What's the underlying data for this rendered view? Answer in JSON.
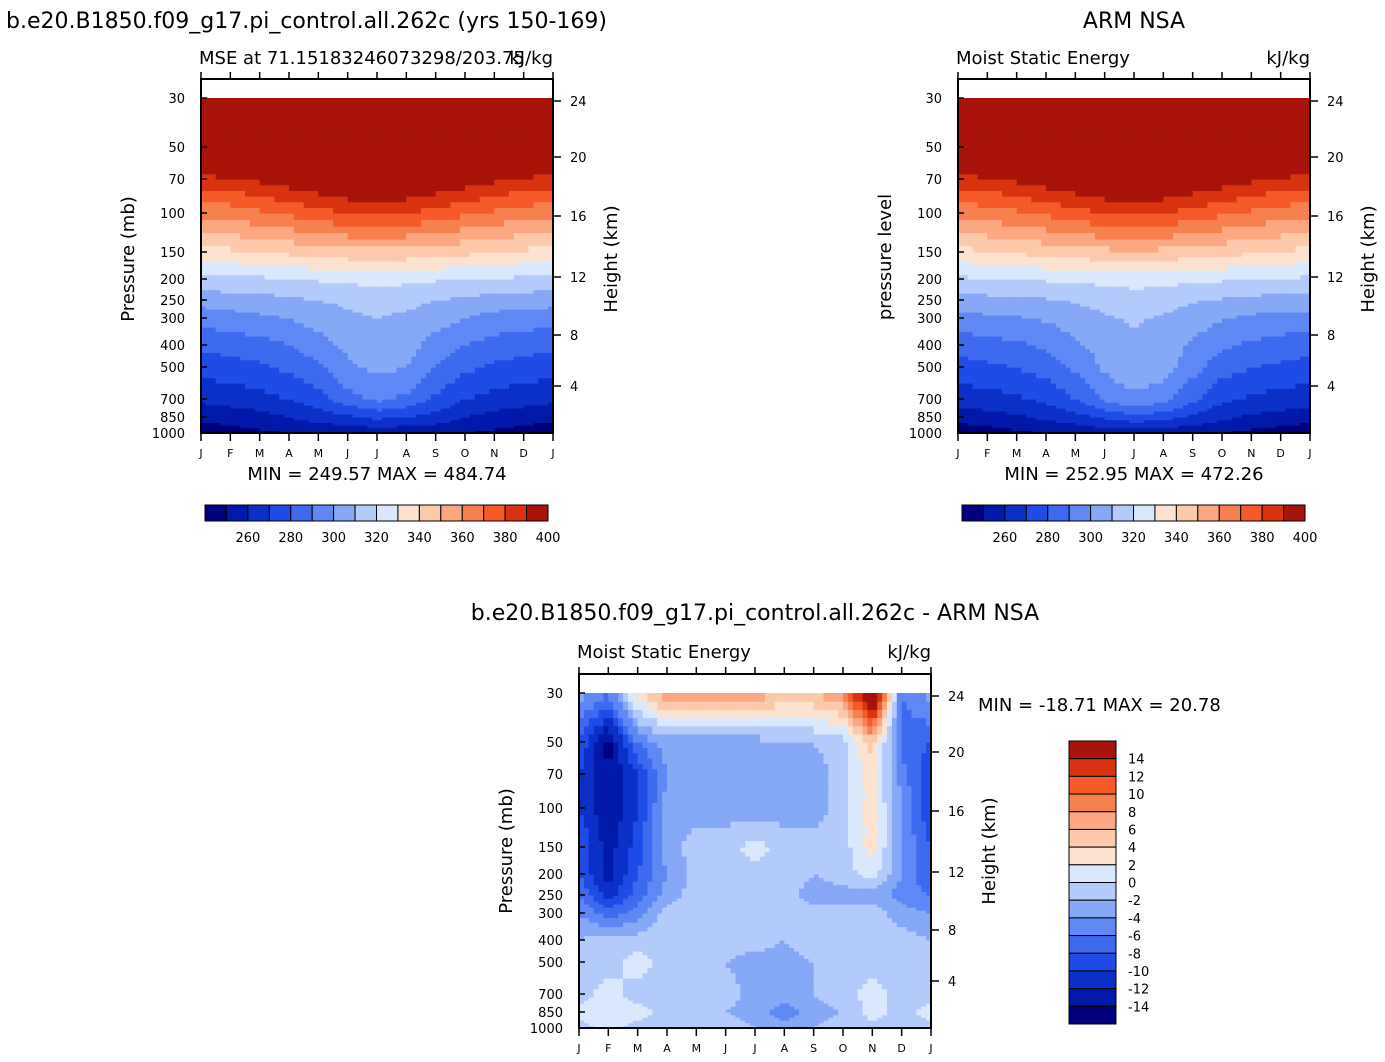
{
  "chart_data": [
    {
      "type": "heatmap",
      "title": "b.e20.B1850.f09_g17.pi_control.all.262c (yrs 150-169)",
      "subtitle": "MSE at 71.15183246073298/203.75",
      "units": "kJ/kg",
      "ylabel": "Pressure (mb)",
      "y2label": "Height (km)",
      "x_ticks": [
        "J",
        "F",
        "M",
        "A",
        "M",
        "J",
        "J",
        "A",
        "S",
        "O",
        "N",
        "D",
        "J"
      ],
      "y_ticks": [
        "30",
        "50",
        "70",
        "100",
        "150",
        "200",
        "250",
        "300",
        "400",
        "500",
        "700",
        "850",
        "1000"
      ],
      "y2_ticks": [
        "24",
        "20",
        "16",
        "12",
        "8",
        "4"
      ],
      "stats": "MIN = 249.57 MAX = 484.74",
      "colorbar_labels": [
        "260",
        "280",
        "300",
        "320",
        "340",
        "360",
        "380",
        "400"
      ],
      "contour_levels": [
        260,
        270,
        280,
        290,
        300,
        310,
        320,
        330,
        340,
        350,
        360,
        370,
        380,
        390,
        400
      ],
      "pressure_levels": [
        1000,
        850,
        700,
        500,
        400,
        300,
        250,
        200,
        150,
        100,
        70,
        50,
        30
      ],
      "months": [
        "Jan",
        "Feb",
        "Mar",
        "Apr",
        "May",
        "Jun",
        "Jul",
        "Aug",
        "Sep",
        "Oct",
        "Nov",
        "Dec",
        "Jan"
      ],
      "values": [
        [
          254,
          256,
          258,
          260,
          262,
          262,
          263,
          262,
          262,
          260,
          258,
          256,
          254
        ],
        [
          262,
          264,
          266,
          270,
          274,
          278,
          282,
          280,
          276,
          270,
          266,
          264,
          262
        ],
        [
          272,
          274,
          276,
          280,
          286,
          296,
          302,
          298,
          288,
          280,
          276,
          274,
          272
        ],
        [
          284,
          286,
          288,
          292,
          298,
          308,
          313,
          310,
          300,
          292,
          288,
          286,
          284
        ],
        [
          292,
          294,
          296,
          300,
          306,
          312,
          317,
          314,
          306,
          300,
          296,
          294,
          292
        ],
        [
          304,
          306,
          308,
          310,
          314,
          318,
          320,
          318,
          314,
          310,
          306,
          305,
          304
        ],
        [
          314,
          315,
          316,
          318,
          320,
          322,
          324,
          323,
          320,
          318,
          316,
          315,
          314
        ],
        [
          326,
          328,
          328,
          330,
          331,
          332,
          333,
          332,
          331,
          330,
          329,
          328,
          326
        ],
        [
          346,
          348,
          350,
          352,
          354,
          356,
          357,
          356,
          354,
          352,
          350,
          348,
          346
        ],
        [
          372,
          374,
          378,
          382,
          386,
          390,
          392,
          390,
          386,
          382,
          378,
          375,
          372
        ],
        [
          396,
          398,
          402,
          406,
          410,
          414,
          416,
          414,
          410,
          406,
          402,
          398,
          396
        ],
        [
          430,
          432,
          434,
          436,
          438,
          440,
          442,
          440,
          438,
          436,
          434,
          432,
          430
        ],
        [
          480,
          481,
          482,
          483,
          484,
          484,
          484,
          484,
          484,
          483,
          482,
          481,
          480
        ]
      ]
    },
    {
      "type": "heatmap",
      "title": "ARM NSA",
      "subtitle": "Moist Static Energy",
      "units": "kJ/kg",
      "ylabel": "pressure level",
      "y2label": "Height (km)",
      "x_ticks": [
        "J",
        "F",
        "M",
        "A",
        "M",
        "J",
        "J",
        "A",
        "S",
        "O",
        "N",
        "D",
        "J"
      ],
      "y_ticks": [
        "30",
        "50",
        "70",
        "100",
        "150",
        "200",
        "250",
        "300",
        "400",
        "500",
        "700",
        "850",
        "1000"
      ],
      "y2_ticks": [
        "24",
        "20",
        "16",
        "12",
        "8",
        "4"
      ],
      "stats": "MIN = 252.95 MAX = 472.26",
      "colorbar_labels": [
        "260",
        "280",
        "300",
        "320",
        "340",
        "360",
        "380",
        "400"
      ],
      "contour_levels": [
        260,
        270,
        280,
        290,
        300,
        310,
        320,
        330,
        340,
        350,
        360,
        370,
        380,
        390,
        400
      ],
      "pressure_levels": [
        1000,
        850,
        700,
        500,
        400,
        300,
        250,
        200,
        150,
        100,
        70,
        50,
        30
      ],
      "months": [
        "Jan",
        "Feb",
        "Mar",
        "Apr",
        "May",
        "Jun",
        "Jul",
        "Aug",
        "Sep",
        "Oct",
        "Nov",
        "Dec",
        "Jan"
      ],
      "values": [
        [
          253,
          255,
          258,
          260,
          262,
          263,
          264,
          263,
          262,
          260,
          257,
          255,
          253
        ],
        [
          264,
          266,
          268,
          272,
          276,
          282,
          286,
          284,
          278,
          272,
          268,
          266,
          264
        ],
        [
          274,
          276,
          278,
          282,
          290,
          302,
          308,
          304,
          292,
          282,
          278,
          276,
          274
        ],
        [
          286,
          288,
          290,
          294,
          302,
          312,
          317,
          314,
          304,
          294,
          290,
          288,
          286
        ],
        [
          294,
          296,
          298,
          302,
          308,
          314,
          318,
          316,
          308,
          302,
          298,
          296,
          294
        ],
        [
          306,
          308,
          309,
          311,
          315,
          319,
          321,
          319,
          315,
          311,
          308,
          306,
          306
        ],
        [
          316,
          317,
          318,
          319,
          321,
          323,
          325,
          324,
          321,
          319,
          317,
          316,
          316
        ],
        [
          328,
          329,
          330,
          331,
          332,
          333,
          334,
          333,
          332,
          331,
          330,
          329,
          328
        ],
        [
          347,
          349,
          351,
          353,
          355,
          357,
          358,
          357,
          355,
          353,
          351,
          349,
          347
        ],
        [
          373,
          375,
          378,
          382,
          386,
          390,
          392,
          390,
          386,
          382,
          378,
          375,
          373
        ],
        [
          396,
          398,
          402,
          406,
          410,
          414,
          416,
          414,
          410,
          406,
          402,
          398,
          396
        ],
        [
          428,
          430,
          432,
          434,
          436,
          438,
          440,
          438,
          436,
          434,
          432,
          430,
          428
        ],
        [
          470,
          471,
          471,
          472,
          472,
          472,
          472,
          472,
          472,
          472,
          471,
          471,
          470
        ]
      ]
    },
    {
      "type": "heatmap",
      "title": "b.e20.B1850.f09_g17.pi_control.all.262c - ARM NSA",
      "subtitle": "Moist Static Energy",
      "units": "kJ/kg",
      "ylabel": "Pressure (mb)",
      "y2label": "Height (km)",
      "x_ticks": [
        "J",
        "F",
        "M",
        "A",
        "M",
        "J",
        "J",
        "A",
        "S",
        "O",
        "N",
        "D",
        "J"
      ],
      "y_ticks": [
        "30",
        "50",
        "70",
        "100",
        "150",
        "200",
        "250",
        "300",
        "400",
        "500",
        "700",
        "850",
        "1000"
      ],
      "y2_ticks": [
        "24",
        "20",
        "16",
        "12",
        "8",
        "4"
      ],
      "stats": "MIN = -18.71 MAX = 20.78",
      "colorbar_labels": [
        "14",
        "12",
        "10",
        "8",
        "6",
        "4",
        "2",
        "0",
        "-2",
        "-4",
        "-6",
        "-8",
        "-10",
        "-12",
        "-14"
      ],
      "contour_levels": [
        -14,
        -12,
        -10,
        -8,
        -6,
        -4,
        -2,
        0,
        2,
        4,
        6,
        8,
        10,
        12,
        14
      ],
      "pressure_levels": [
        1000,
        850,
        700,
        500,
        400,
        300,
        250,
        200,
        150,
        100,
        70,
        50,
        30
      ],
      "months": [
        "Jan",
        "Feb",
        "Mar",
        "Apr",
        "May",
        "Jun",
        "Jul",
        "Aug",
        "Sep",
        "Oct",
        "Nov",
        "Dec",
        "Jan"
      ],
      "values": [
        [
          -1,
          1,
          -1,
          -1,
          -2,
          -1,
          -2,
          -3,
          -2,
          -1,
          -1,
          -1,
          -1
        ],
        [
          1,
          2,
          1,
          -1,
          -2,
          -2,
          -3,
          -5,
          -3,
          -2,
          1,
          -1,
          1
        ],
        [
          -1,
          1,
          -1,
          -1,
          -2,
          -1,
          -3,
          -3,
          -2,
          -1,
          1,
          -1,
          -1
        ],
        [
          -1,
          -1,
          1,
          -1,
          -1,
          -2,
          -3,
          -3,
          -2,
          -1,
          -1,
          -1,
          -1
        ],
        [
          -2,
          -1,
          -1,
          -1,
          -1,
          -1,
          -1,
          -2,
          -1,
          -1,
          -1,
          -1,
          -2
        ],
        [
          -4,
          -7,
          -5,
          -1,
          -1,
          -1,
          -1,
          -1,
          -1,
          -1,
          -1,
          -3,
          -4
        ],
        [
          -6,
          -11,
          -7,
          -3,
          -1,
          -1,
          -2,
          -1,
          -3,
          -3,
          -3,
          -5,
          -6
        ],
        [
          -8,
          -13,
          -8,
          -4,
          -1,
          -1,
          -1,
          -1,
          -2,
          -1,
          1,
          -4,
          -8
        ],
        [
          -8,
          -13,
          -9,
          -3,
          -1,
          -1,
          1,
          -1,
          -1,
          -1,
          3,
          -4,
          -8
        ],
        [
          -10,
          -14,
          -10,
          -3,
          -3,
          -3,
          -3,
          -3,
          -3,
          -1,
          3,
          -4,
          -10
        ],
        [
          -10,
          -14,
          -10,
          -4,
          -3,
          -3,
          -3,
          -3,
          -3,
          -1,
          3,
          -5,
          -10
        ],
        [
          -8,
          -15,
          -6,
          -3,
          -3,
          -3,
          -3,
          -2,
          -2,
          -1,
          5,
          -7,
          -8
        ],
        [
          -3,
          -6,
          3,
          8,
          8,
          7,
          8,
          5,
          6,
          8,
          20,
          -6,
          -3
        ]
      ]
    }
  ]
}
